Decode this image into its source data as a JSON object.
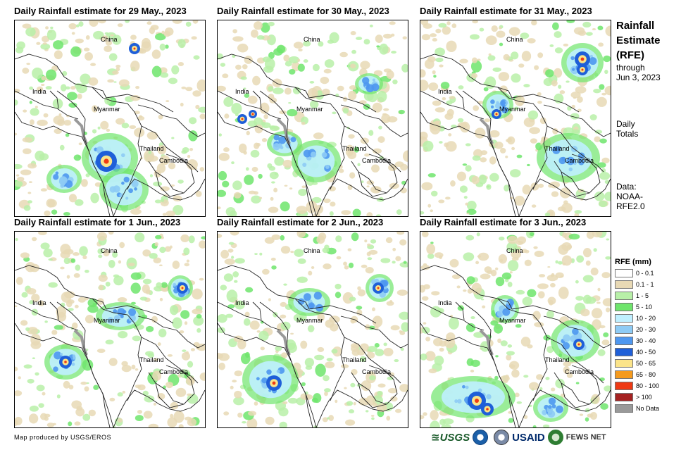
{
  "panels": [
    {
      "title": "Daily Rainfall estimate for 29 May., 2023",
      "heavy": [
        [
          130,
          200,
          12
        ],
        [
          170,
          40,
          5
        ]
      ],
      "blue_patches": [
        [
          135,
          195,
          40,
          35
        ],
        [
          155,
          240,
          35,
          30
        ],
        [
          70,
          225,
          25,
          20
        ]
      ]
    },
    {
      "title": "Daily Rainfall estimate for 30 May., 2023",
      "heavy": [
        [
          35,
          140,
          4
        ],
        [
          50,
          133,
          3
        ]
      ],
      "blue_patches": [
        [
          140,
          200,
          35,
          30
        ],
        [
          95,
          175,
          25,
          18
        ],
        [
          215,
          90,
          20,
          15
        ]
      ]
    },
    {
      "title": "Daily Rainfall estimate for 31 May., 2023",
      "heavy": [
        [
          230,
          55,
          8
        ],
        [
          230,
          70,
          5
        ],
        [
          108,
          133,
          4
        ]
      ],
      "blue_patches": [
        [
          230,
          60,
          30,
          28
        ],
        [
          110,
          120,
          22,
          20
        ],
        [
          210,
          195,
          45,
          35
        ]
      ]
    },
    {
      "title": "Daily Rainfall estimate for 1 Jun., 2023",
      "heavy": [
        [
          72,
          185,
          6
        ],
        [
          238,
          80,
          5
        ]
      ],
      "blue_patches": [
        [
          72,
          185,
          30,
          25
        ],
        [
          235,
          80,
          18,
          18
        ],
        [
          150,
          120,
          35,
          20
        ]
      ]
    },
    {
      "title": "Daily Rainfall estimate for 2 Jun., 2023",
      "heavy": [
        [
          80,
          215,
          8
        ],
        [
          228,
          80,
          5
        ]
      ],
      "blue_patches": [
        [
          75,
          210,
          40,
          35
        ],
        [
          230,
          80,
          20,
          20
        ],
        [
          130,
          100,
          30,
          20
        ]
      ]
    },
    {
      "title": "Daily Rainfall estimate for 3 Jun., 2023",
      "heavy": [
        [
          80,
          240,
          10
        ],
        [
          225,
          160,
          5
        ],
        [
          95,
          252,
          6
        ]
      ],
      "blue_patches": [
        [
          75,
          235,
          60,
          30
        ],
        [
          220,
          155,
          35,
          30
        ],
        [
          185,
          250,
          25,
          20
        ],
        [
          120,
          110,
          20,
          20
        ]
      ]
    }
  ],
  "places": {
    "china": "China",
    "india": "India",
    "myanmar": "Myanmar",
    "thailand": "Thailand",
    "cambodia": "Cambodia"
  },
  "sidebar": {
    "title_line1": "Rainfall",
    "title_line2": "Estimate",
    "title_line3": "(RFE)",
    "through": "through",
    "through_date": "Jun 3, 2023",
    "daily1": "Daily",
    "daily2": "Totals",
    "data1": "Data:",
    "data2": "NOAA-",
    "data3": "RFE2.0"
  },
  "legend": {
    "title": "RFE (mm)",
    "items": [
      {
        "label": "0 - 0.1",
        "color": "#ffffff"
      },
      {
        "label": "0.1 - 1",
        "color": "#e8d9b5"
      },
      {
        "label": "1 - 5",
        "color": "#b8f0a8"
      },
      {
        "label": "5 - 10",
        "color": "#6fe56c"
      },
      {
        "label": "10 - 20",
        "color": "#bfefff"
      },
      {
        "label": "20 - 30",
        "color": "#8ecbf5"
      },
      {
        "label": "30 - 40",
        "color": "#4e97f0"
      },
      {
        "label": "40 - 50",
        "color": "#1f5fd8"
      },
      {
        "label": "50 - 65",
        "color": "#fbe48a"
      },
      {
        "label": "65 - 80",
        "color": "#f59a1d"
      },
      {
        "label": "80 - 100",
        "color": "#ef3a14"
      },
      {
        "label": "> 100",
        "color": "#a52222"
      },
      {
        "label": "No Data",
        "color": "#999999"
      }
    ]
  },
  "credit": "Map produced by USGS/EROS",
  "logos": {
    "usgs": "≊USGS",
    "usaid": "USAID",
    "fews": "FEWS NET"
  }
}
